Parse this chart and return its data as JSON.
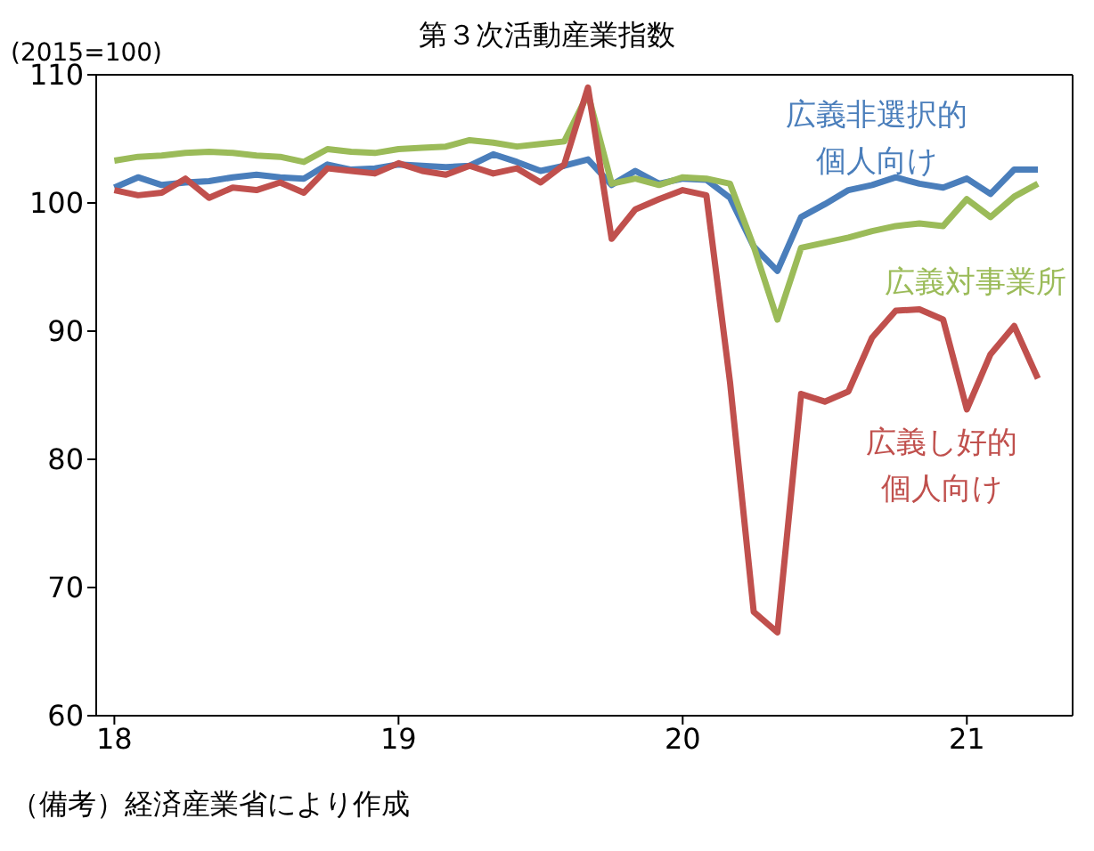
{
  "chart_data": {
    "type": "line",
    "title": "第３次活動産業指数",
    "annotations": [
      "(2015=100)",
      "（備考）経済産業省により作成"
    ],
    "x": [
      "2018-01",
      "2018-02",
      "2018-03",
      "2018-04",
      "2018-05",
      "2018-06",
      "2018-07",
      "2018-08",
      "2018-09",
      "2018-10",
      "2018-11",
      "2018-12",
      "2019-01",
      "2019-02",
      "2019-03",
      "2019-04",
      "2019-05",
      "2019-06",
      "2019-07",
      "2019-08",
      "2019-09",
      "2019-10",
      "2019-11",
      "2019-12",
      "2020-01",
      "2020-02",
      "2020-03",
      "2020-04",
      "2020-05",
      "2020-06",
      "2020-07",
      "2020-08",
      "2020-09",
      "2020-10",
      "2020-11",
      "2020-12",
      "2021-01",
      "2021-02",
      "2021-03",
      "2021-04"
    ],
    "series": [
      {
        "name": "広義非選択的個人向け",
        "color": "#4a7ebb",
        "values": [
          101.2,
          102.0,
          101.4,
          101.6,
          101.7,
          102.0,
          102.2,
          102.0,
          101.9,
          103.0,
          102.6,
          102.7,
          103.0,
          102.9,
          102.8,
          102.9,
          103.8,
          103.2,
          102.5,
          102.9,
          103.4,
          101.4,
          102.5,
          101.5,
          101.9,
          101.8,
          100.4,
          96.6,
          94.7,
          98.9,
          99.9,
          101.0,
          101.4,
          102.0,
          101.5,
          101.2,
          101.9,
          100.7,
          102.6,
          102.6
        ]
      },
      {
        "name": "広義対事業所",
        "color": "#9bbb59",
        "values": [
          103.3,
          103.6,
          103.7,
          103.9,
          104.0,
          103.9,
          103.7,
          103.6,
          103.2,
          104.2,
          104.0,
          103.9,
          104.2,
          104.3,
          104.4,
          104.9,
          104.7,
          104.4,
          104.6,
          104.8,
          108.5,
          101.5,
          101.9,
          101.4,
          102.0,
          101.9,
          101.5,
          96.6,
          90.9,
          96.5,
          96.9,
          97.3,
          97.8,
          98.2,
          98.4,
          98.2,
          100.3,
          98.9,
          100.5,
          101.5
        ]
      },
      {
        "name": "広義し好的個人向け",
        "color": "#c0504d",
        "values": [
          101.0,
          100.6,
          100.8,
          101.9,
          100.4,
          101.2,
          101.0,
          101.6,
          100.8,
          102.7,
          102.5,
          102.3,
          103.1,
          102.5,
          102.2,
          102.9,
          102.3,
          102.7,
          101.6,
          103.0,
          109.0,
          97.2,
          99.5,
          100.3,
          101.0,
          100.6,
          86.0,
          68.1,
          66.5,
          85.1,
          84.5,
          85.3,
          89.5,
          91.6,
          91.7,
          90.9,
          83.9,
          88.2,
          90.4,
          86.3
        ]
      }
    ],
    "xlim": [
      "2017-12-08",
      "2021-05-15"
    ],
    "xticks": [
      {
        "value": "2018-01",
        "label": "18"
      },
      {
        "value": "2019-01",
        "label": "19"
      },
      {
        "value": "2020-01",
        "label": "20"
      },
      {
        "value": "2021-01",
        "label": "21"
      }
    ],
    "ylim": [
      60,
      110
    ],
    "yticks": [
      60,
      70,
      80,
      90,
      100,
      110
    ],
    "grid": false,
    "marker": "none",
    "line_style": "solid"
  }
}
